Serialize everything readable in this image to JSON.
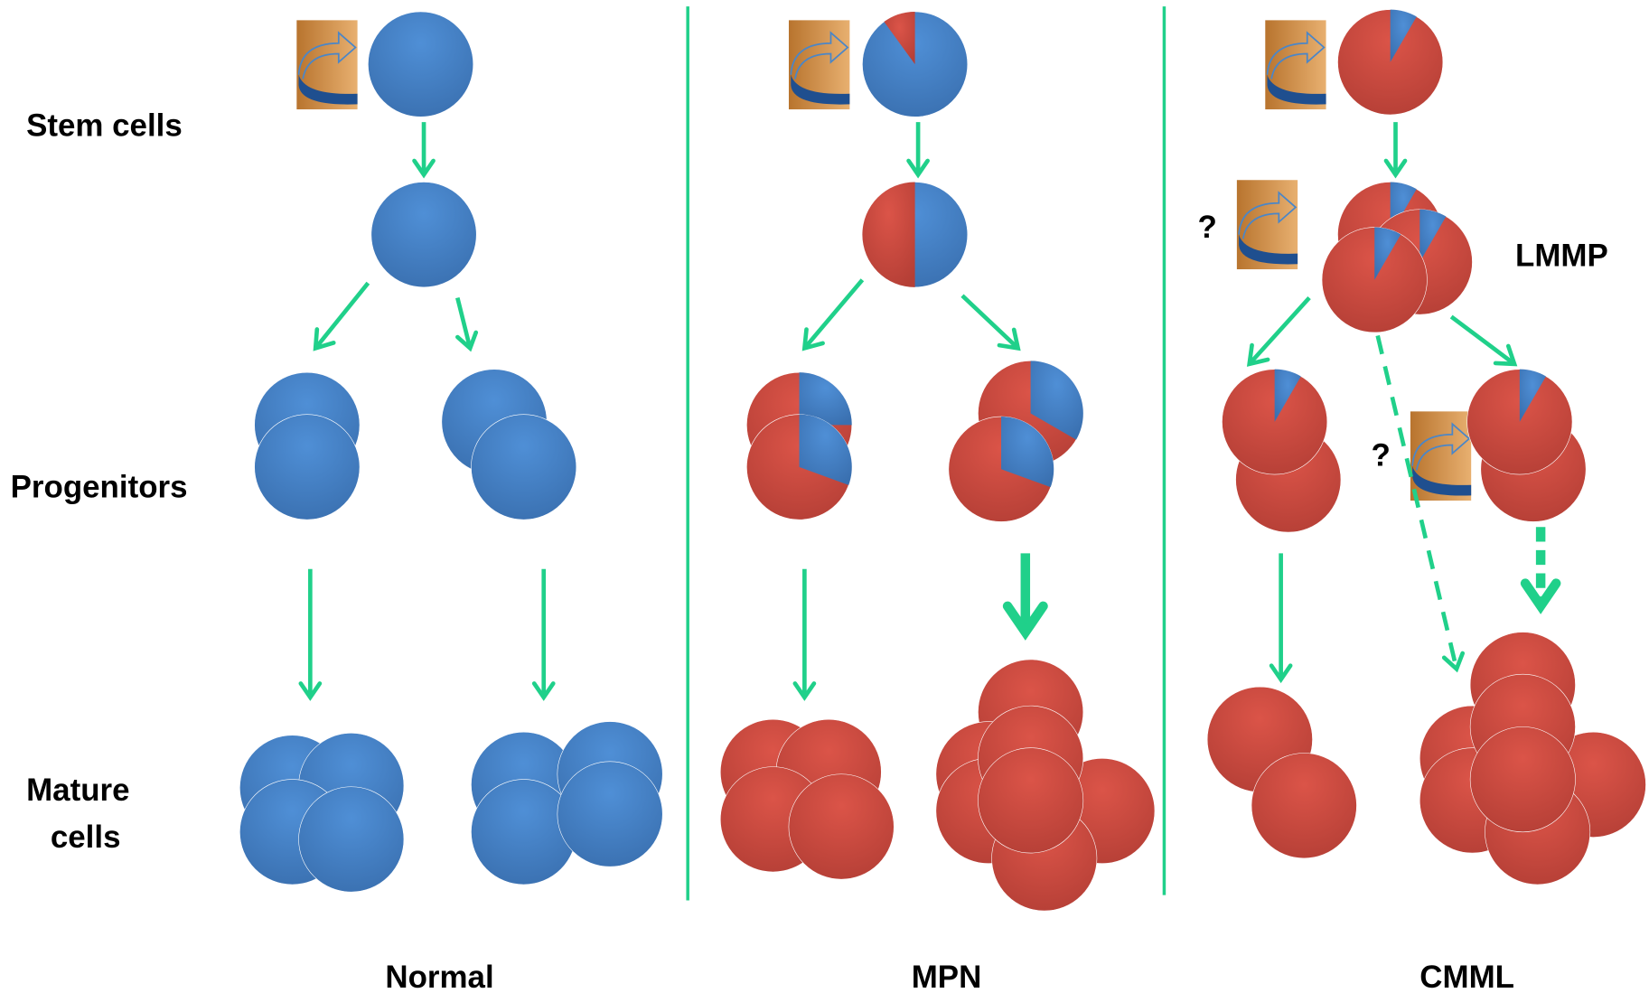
{
  "row_labels": {
    "stem": "Stem cells",
    "progenitors": "Progenitors",
    "mature": [
      "Mature",
      "cells"
    ]
  },
  "columns": [
    "Normal",
    "MPN",
    "CMML"
  ],
  "annotations": {
    "lmmp": "LMMP",
    "question_1": "?",
    "question_2": "?"
  }
}
